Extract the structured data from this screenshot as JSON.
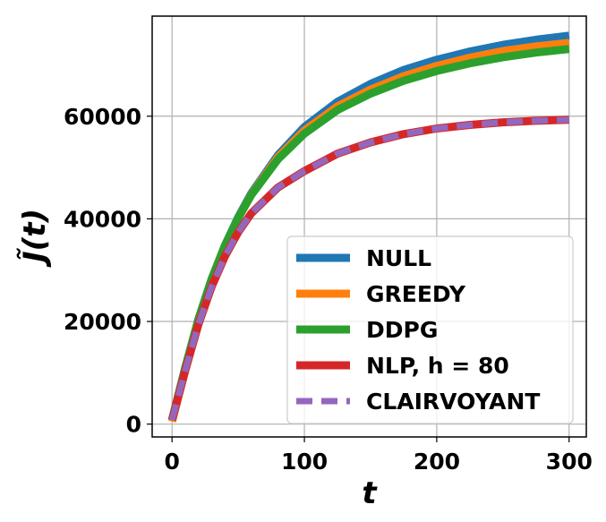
{
  "chart_data": {
    "type": "line",
    "title": "",
    "xlabel": "t",
    "ylabel": "J̃(t)",
    "xlim": [
      -15,
      313
    ],
    "ylim": [
      -2500,
      79500
    ],
    "xticks": [
      0,
      100,
      200,
      300
    ],
    "xtick_labels": [
      "0",
      "100",
      "200",
      "300"
    ],
    "yticks": [
      0,
      20000,
      40000,
      60000
    ],
    "ytick_labels": [
      "0",
      "20000",
      "40000",
      "60000"
    ],
    "grid": true,
    "legend_position": "lower-right",
    "x": [
      0,
      10,
      20,
      30,
      40,
      50,
      60,
      80,
      100,
      125,
      150,
      175,
      200,
      225,
      250,
      275,
      300
    ],
    "series": [
      {
        "name": "NULL",
        "color": "#1f77b4",
        "style": "solid",
        "values": [
          800,
          11000,
          20500,
          28300,
          34800,
          40300,
          45000,
          52400,
          57900,
          62800,
          66300,
          69000,
          71000,
          72600,
          73900,
          74900,
          75700
        ]
      },
      {
        "name": "GREEDY",
        "color": "#ff7f0e",
        "style": "solid",
        "values": [
          500,
          10500,
          20000,
          28000,
          34600,
          40100,
          44800,
          52000,
          57200,
          61900,
          65200,
          67800,
          69800,
          71400,
          72700,
          73600,
          74300
        ]
      },
      {
        "name": "DDPG",
        "color": "#2ca02c",
        "style": "solid",
        "values": [
          800,
          11000,
          20500,
          28300,
          34800,
          40200,
          44700,
          51600,
          56600,
          61200,
          64400,
          66900,
          68800,
          70300,
          71500,
          72400,
          73100
        ]
      },
      {
        "name": "NLP, h = 80",
        "color": "#d62728",
        "style": "solid",
        "values": [
          800,
          10500,
          19500,
          26800,
          32700,
          37400,
          41100,
          46100,
          49300,
          52700,
          54900,
          56500,
          57600,
          58300,
          58800,
          59100,
          59300
        ]
      },
      {
        "name": "CLAIRVOYANT",
        "color": "#9467bd",
        "style": "dashed",
        "values": [
          800,
          10500,
          19500,
          26800,
          32700,
          37400,
          41100,
          46100,
          49300,
          52700,
          54900,
          56500,
          57600,
          58300,
          58800,
          59100,
          59300
        ]
      }
    ]
  }
}
